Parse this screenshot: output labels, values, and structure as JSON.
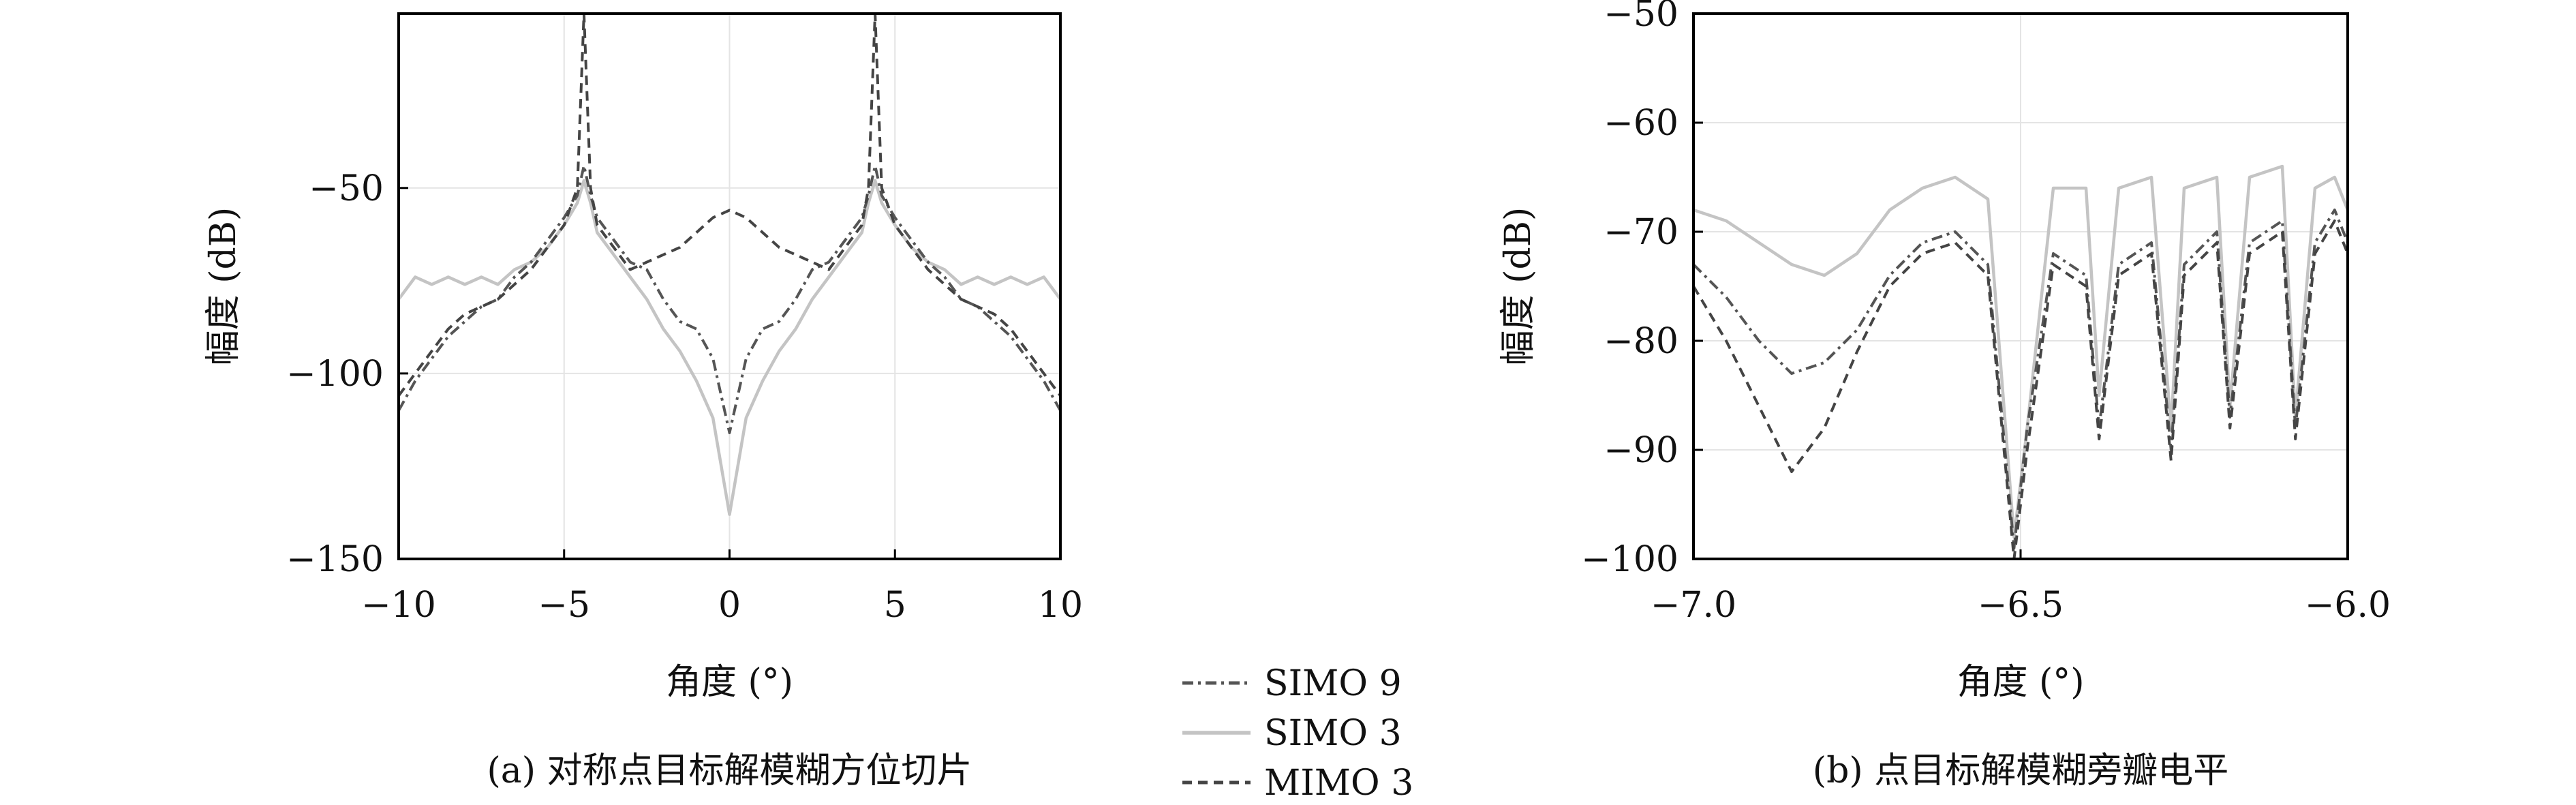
{
  "chart_data": [
    {
      "type": "line",
      "caption": "(a) 对称点目标解模糊方位切片",
      "xlabel": "角度 (°)",
      "ylabel": "幅度 (dB)",
      "xlim": [
        -10,
        10
      ],
      "ylim": [
        -150,
        -3
      ],
      "xticks": [
        -10,
        -5,
        0,
        5,
        10
      ],
      "yticks": [
        -150,
        -100,
        -50
      ],
      "xtick_labels": [
        "−10",
        "−5",
        "0",
        "5",
        "10"
      ],
      "ytick_labels": [
        "−150",
        "−100",
        "−50"
      ],
      "grid": true,
      "series": [
        {
          "name": "SIMO 9",
          "x": [
            -10,
            -9.5,
            -9,
            -8.5,
            -8,
            -7.5,
            -7,
            -6.5,
            -6,
            -5.5,
            -5,
            -4.6,
            -4.4,
            -4.2,
            -4,
            -3.5,
            -3,
            -2.5,
            -2,
            -1.5,
            -1,
            -0.5,
            0,
            0.5,
            1,
            1.5,
            2,
            2.5,
            3,
            3.5,
            4,
            4.2,
            4.4,
            4.6,
            5,
            5.5,
            6,
            6.5,
            7,
            7.5,
            8,
            8.5,
            9,
            9.5,
            10
          ],
          "y": [
            -110,
            -102,
            -96,
            -90,
            -86,
            -82,
            -80,
            -74,
            -70,
            -64,
            -58,
            -52,
            -44,
            -52,
            -58,
            -64,
            -70,
            -72,
            -80,
            -86,
            -88,
            -96,
            -116,
            -96,
            -88,
            -86,
            -80,
            -72,
            -70,
            -64,
            -58,
            -52,
            -44,
            -52,
            -58,
            -64,
            -70,
            -74,
            -80,
            -82,
            -86,
            -90,
            -96,
            -102,
            -110
          ]
        },
        {
          "name": "SIMO 3",
          "x": [
            -10,
            -9.5,
            -9,
            -8.5,
            -8,
            -7.5,
            -7,
            -6.5,
            -6,
            -5.5,
            -5,
            -4.6,
            -4.4,
            -4.2,
            -4,
            -3.5,
            -3,
            -2.5,
            -2,
            -1.5,
            -1,
            -0.5,
            0,
            0.5,
            1,
            1.5,
            2,
            2.5,
            3,
            3.5,
            4,
            4.2,
            4.4,
            4.6,
            5,
            5.5,
            6,
            6.5,
            7,
            7.5,
            8,
            8.5,
            9,
            9.5,
            10
          ],
          "y": [
            -80,
            -74,
            -76,
            -74,
            -76,
            -74,
            -76,
            -72,
            -70,
            -66,
            -60,
            -54,
            -48,
            -54,
            -62,
            -68,
            -74,
            -80,
            -88,
            -94,
            -102,
            -112,
            -138,
            -112,
            -102,
            -94,
            -88,
            -80,
            -74,
            -68,
            -62,
            -54,
            -48,
            -54,
            -60,
            -66,
            -70,
            -72,
            -76,
            -74,
            -76,
            -74,
            -76,
            -74,
            -80
          ]
        },
        {
          "name": "MIMO 3",
          "x": [
            -10,
            -9.5,
            -9,
            -8.5,
            -8,
            -7.5,
            -7,
            -6.5,
            -6,
            -5.5,
            -5,
            -4.6,
            -4.4,
            -4.2,
            -4,
            -3.5,
            -3,
            -2.5,
            -2,
            -1.5,
            -1,
            -0.5,
            0,
            0.5,
            1,
            1.5,
            2,
            2.5,
            3,
            3.5,
            4,
            4.2,
            4.4,
            4.6,
            5,
            5.5,
            6,
            6.5,
            7,
            7.5,
            8,
            8.5,
            9,
            9.5,
            10
          ],
          "y": [
            -106,
            -100,
            -94,
            -88,
            -84,
            -82,
            -80,
            -76,
            -72,
            -66,
            -60,
            -50,
            -3,
            -50,
            -60,
            -66,
            -72,
            -70,
            -68,
            -66,
            -62,
            -58,
            -56,
            -58,
            -62,
            -66,
            -68,
            -70,
            -72,
            -66,
            -60,
            -50,
            -3,
            -50,
            -60,
            -66,
            -72,
            -76,
            -80,
            -82,
            -84,
            -88,
            -94,
            -100,
            -106
          ]
        }
      ]
    },
    {
      "type": "line",
      "caption": "(b) 点目标解模糊旁瓣电平",
      "xlabel": "角度 (°)",
      "ylabel": "幅度 (dB)",
      "xlim": [
        -7.0,
        -6.0
      ],
      "ylim": [
        -100,
        -50
      ],
      "xticks": [
        -7.0,
        -6.5,
        -6.0
      ],
      "yticks": [
        -100,
        -90,
        -80,
        -70,
        -60,
        -50
      ],
      "xtick_labels": [
        "−7.0",
        "−6.5",
        "−6.0"
      ],
      "ytick_labels": [
        "−100",
        "−90",
        "−80",
        "−70",
        "−60",
        "−50"
      ],
      "grid": true,
      "series": [
        {
          "name": "SIMO 9",
          "x": [
            -7.0,
            -6.95,
            -6.9,
            -6.85,
            -6.8,
            -6.75,
            -6.7,
            -6.65,
            -6.6,
            -6.55,
            -6.51,
            -6.49,
            -6.45,
            -6.4,
            -6.38,
            -6.35,
            -6.3,
            -6.27,
            -6.25,
            -6.2,
            -6.18,
            -6.15,
            -6.1,
            -6.08,
            -6.05,
            -6.02,
            -6.0
          ],
          "y": [
            -73,
            -76,
            -80,
            -83,
            -82,
            -79,
            -74,
            -71,
            -70,
            -73,
            -99,
            -88,
            -72,
            -74,
            -88,
            -73,
            -71,
            -90,
            -73,
            -70,
            -87,
            -71,
            -69,
            -88,
            -71,
            -68,
            -71
          ]
        },
        {
          "name": "SIMO 3",
          "x": [
            -7.0,
            -6.95,
            -6.9,
            -6.85,
            -6.8,
            -6.75,
            -6.7,
            -6.65,
            -6.6,
            -6.55,
            -6.51,
            -6.49,
            -6.45,
            -6.4,
            -6.38,
            -6.35,
            -6.3,
            -6.27,
            -6.25,
            -6.2,
            -6.18,
            -6.15,
            -6.1,
            -6.08,
            -6.05,
            -6.02,
            -6.0
          ],
          "y": [
            -68,
            -69,
            -71,
            -73,
            -74,
            -72,
            -68,
            -66,
            -65,
            -67,
            -98,
            -88,
            -66,
            -66,
            -85,
            -66,
            -65,
            -88,
            -66,
            -65,
            -86,
            -65,
            -64,
            -87,
            -66,
            -65,
            -68
          ]
        },
        {
          "name": "MIMO 3",
          "x": [
            -7.0,
            -6.95,
            -6.9,
            -6.85,
            -6.8,
            -6.75,
            -6.7,
            -6.65,
            -6.6,
            -6.55,
            -6.51,
            -6.49,
            -6.45,
            -6.4,
            -6.38,
            -6.35,
            -6.3,
            -6.27,
            -6.25,
            -6.2,
            -6.18,
            -6.15,
            -6.1,
            -6.08,
            -6.05,
            -6.02,
            -6.0
          ],
          "y": [
            -75,
            -80,
            -86,
            -92,
            -88,
            -81,
            -75,
            -72,
            -71,
            -74,
            -100,
            -90,
            -73,
            -75,
            -89,
            -74,
            -72,
            -91,
            -74,
            -71,
            -88,
            -72,
            -70,
            -89,
            -72,
            -69,
            -72
          ]
        }
      ]
    }
  ],
  "legend": {
    "placement": "bottom-center",
    "entries": [
      {
        "name": "SIMO 9",
        "style": "dashdot"
      },
      {
        "name": "SIMO 3",
        "style": "solid"
      },
      {
        "name": "MIMO 3",
        "style": "dashed"
      }
    ]
  },
  "colors": {
    "SIMO 9": "#555555",
    "SIMO 3": "#c4c4c4",
    "MIMO 3": "#444444",
    "grid": "#e4e4e4",
    "axes": "#000000"
  }
}
